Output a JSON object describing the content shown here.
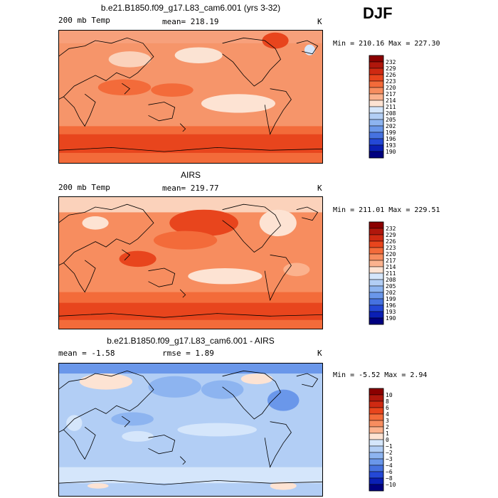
{
  "season": "DJF",
  "chart_data": [
    {
      "type": "heatmap",
      "title": "b.e21.B1850.f09_g17.L83_cam6.001 (yrs 3-32)",
      "left_label": "200 mb Temp",
      "mean_label": "mean= 218.19",
      "units": "K",
      "minmax_label": "Min = 210.16 Max = 227.30",
      "colorbar": {
        "levels": [
          "232",
          "229",
          "226",
          "223",
          "220",
          "217",
          "214",
          "211",
          "208",
          "205",
          "202",
          "199",
          "196",
          "193",
          "190"
        ],
        "colors": [
          "#8b0000",
          "#b0170c",
          "#cf2a12",
          "#e8451d",
          "#f36b3a",
          "#f78d5f",
          "#fbb28e",
          "#fde3d3",
          "#d5e6fb",
          "#b2cef5",
          "#8db4f0",
          "#6a97ea",
          "#4672e0",
          "#2448d6",
          "#0a1fb4",
          "#000080"
        ]
      },
      "field": {
        "base": "#f6956a",
        "regions": [
          {
            "shape": "band",
            "y": [
              0.0,
              0.1
            ],
            "color": "#f7a07b"
          },
          {
            "shape": "band",
            "y": [
              0.72,
              0.78
            ],
            "color": "#f36b3a"
          },
          {
            "shape": "band",
            "y": [
              0.78,
              0.92
            ],
            "color": "#e8451d"
          },
          {
            "shape": "band",
            "y": [
              0.92,
              1.0
            ],
            "color": "#f36b3a"
          },
          {
            "shape": "blob",
            "c": [
              0.27,
              0.22
            ],
            "r": [
              0.08,
              0.06
            ],
            "color": "#fbd2bb"
          },
          {
            "shape": "blob",
            "c": [
              0.53,
              0.19
            ],
            "r": [
              0.09,
              0.06
            ],
            "color": "#fbe3d3"
          },
          {
            "shape": "blob",
            "c": [
              0.82,
              0.08
            ],
            "r": [
              0.05,
              0.06
            ],
            "color": "#e8451d"
          },
          {
            "shape": "blob",
            "c": [
              0.95,
              0.15
            ],
            "r": [
              0.02,
              0.04
            ],
            "color": "#d5e6fb"
          },
          {
            "shape": "blob",
            "c": [
              0.68,
              0.55
            ],
            "r": [
              0.14,
              0.07
            ],
            "color": "#fde3d3"
          },
          {
            "shape": "blob",
            "c": [
              0.25,
              0.43
            ],
            "r": [
              0.1,
              0.06
            ],
            "color": "#f36b3a"
          },
          {
            "shape": "blob",
            "c": [
              0.43,
              0.45
            ],
            "r": [
              0.08,
              0.05
            ],
            "color": "#f36b3a"
          }
        ]
      }
    },
    {
      "type": "heatmap",
      "title": "AIRS",
      "left_label": "200 mb Temp",
      "mean_label": "mean= 219.77",
      "units": "K",
      "minmax_label": "Min = 211.01 Max = 229.51",
      "colorbar": {
        "levels": [
          "232",
          "229",
          "226",
          "223",
          "220",
          "217",
          "214",
          "211",
          "208",
          "205",
          "202",
          "199",
          "196",
          "193",
          "190"
        ],
        "colors": [
          "#8b0000",
          "#b0170c",
          "#cf2a12",
          "#e8451d",
          "#f36b3a",
          "#f78d5f",
          "#fbb28e",
          "#fde3d3",
          "#d5e6fb",
          "#b2cef5",
          "#8db4f0",
          "#6a97ea",
          "#4672e0",
          "#2448d6",
          "#0a1fb4",
          "#000080"
        ]
      },
      "field": {
        "base": "#f78d5f",
        "regions": [
          {
            "shape": "band",
            "y": [
              0.0,
              0.12
            ],
            "color": "#fbd2bb"
          },
          {
            "shape": "band",
            "y": [
              0.72,
              0.8
            ],
            "color": "#f36b3a"
          },
          {
            "shape": "band",
            "y": [
              0.8,
              0.93
            ],
            "color": "#e8451d"
          },
          {
            "shape": "band",
            "y": [
              0.93,
              1.0
            ],
            "color": "#f36b3a"
          },
          {
            "shape": "blob",
            "c": [
              0.55,
              0.2
            ],
            "r": [
              0.13,
              0.1
            ],
            "color": "#e8451d"
          },
          {
            "shape": "blob",
            "c": [
              0.48,
              0.33
            ],
            "r": [
              0.12,
              0.07
            ],
            "color": "#f36b3a"
          },
          {
            "shape": "blob",
            "c": [
              0.3,
              0.47
            ],
            "r": [
              0.07,
              0.06
            ],
            "color": "#e8451d"
          },
          {
            "shape": "blob",
            "c": [
              0.63,
              0.6
            ],
            "r": [
              0.14,
              0.06
            ],
            "color": "#fde3d3"
          },
          {
            "shape": "blob",
            "c": [
              0.83,
              0.2
            ],
            "r": [
              0.07,
              0.1
            ],
            "color": "#fde3d3"
          },
          {
            "shape": "blob",
            "c": [
              0.14,
              0.2
            ],
            "r": [
              0.05,
              0.05
            ],
            "color": "#fde3d3"
          },
          {
            "shape": "blob",
            "c": [
              0.9,
              0.55
            ],
            "r": [
              0.05,
              0.05
            ],
            "color": "#fbb28e"
          }
        ]
      }
    },
    {
      "type": "heatmap",
      "title": "b.e21.B1850.f09_g17.L83_cam6.001 - AIRS",
      "left_label": "mean =   -1.58",
      "mean_label": "rmse =    1.89",
      "units": "K",
      "minmax_label": "Min =  -5.52 Max =    2.94",
      "colorbar": {
        "levels": [
          "10",
          "8",
          "6",
          "4",
          "3",
          "2",
          "1",
          "0",
          "−1",
          "−2",
          "−3",
          "−4",
          "−6",
          "−8",
          "−10"
        ],
        "colors": [
          "#8b0000",
          "#b0170c",
          "#cf2a12",
          "#e8451d",
          "#f36b3a",
          "#f78d5f",
          "#fbb28e",
          "#fde3d3",
          "#d5e6fb",
          "#b2cef5",
          "#8db4f0",
          "#6a97ea",
          "#4672e0",
          "#2448d6",
          "#0a1fb4",
          "#000080"
        ]
      },
      "field": {
        "base": "#b2cef5",
        "regions": [
          {
            "shape": "band",
            "y": [
              0.0,
              0.08
            ],
            "color": "#6a97ea"
          },
          {
            "shape": "band",
            "y": [
              0.78,
              0.9
            ],
            "color": "#d5e6fb"
          },
          {
            "shape": "blob",
            "c": [
              0.18,
              0.14
            ],
            "r": [
              0.1,
              0.06
            ],
            "color": "#fde3d3"
          },
          {
            "shape": "blob",
            "c": [
              0.75,
              0.12
            ],
            "r": [
              0.06,
              0.04
            ],
            "color": "#fde3d3"
          },
          {
            "shape": "blob",
            "c": [
              0.44,
              0.18
            ],
            "r": [
              0.1,
              0.08
            ],
            "color": "#8db4f0"
          },
          {
            "shape": "blob",
            "c": [
              0.62,
              0.2
            ],
            "r": [
              0.08,
              0.07
            ],
            "color": "#8db4f0"
          },
          {
            "shape": "blob",
            "c": [
              0.85,
              0.28
            ],
            "r": [
              0.06,
              0.08
            ],
            "color": "#6a97ea"
          },
          {
            "shape": "blob",
            "c": [
              0.28,
              0.42
            ],
            "r": [
              0.08,
              0.05
            ],
            "color": "#8db4f0"
          },
          {
            "shape": "blob",
            "c": [
              0.6,
              0.5
            ],
            "r": [
              0.15,
              0.05
            ],
            "color": "#d5e6fb"
          },
          {
            "shape": "blob",
            "c": [
              0.3,
              0.55
            ],
            "r": [
              0.06,
              0.04
            ],
            "color": "#d5e6fb"
          },
          {
            "shape": "blob",
            "c": [
              0.15,
              0.92
            ],
            "r": [
              0.04,
              0.02
            ],
            "color": "#fde3d3"
          },
          {
            "shape": "blob",
            "c": [
              0.85,
              0.92
            ],
            "r": [
              0.05,
              0.03
            ],
            "color": "#fde3d3"
          },
          {
            "shape": "blob",
            "c": [
              0.06,
              0.45
            ],
            "r": [
              0.03,
              0.06
            ],
            "color": "#d5e6fb"
          }
        ]
      }
    }
  ]
}
